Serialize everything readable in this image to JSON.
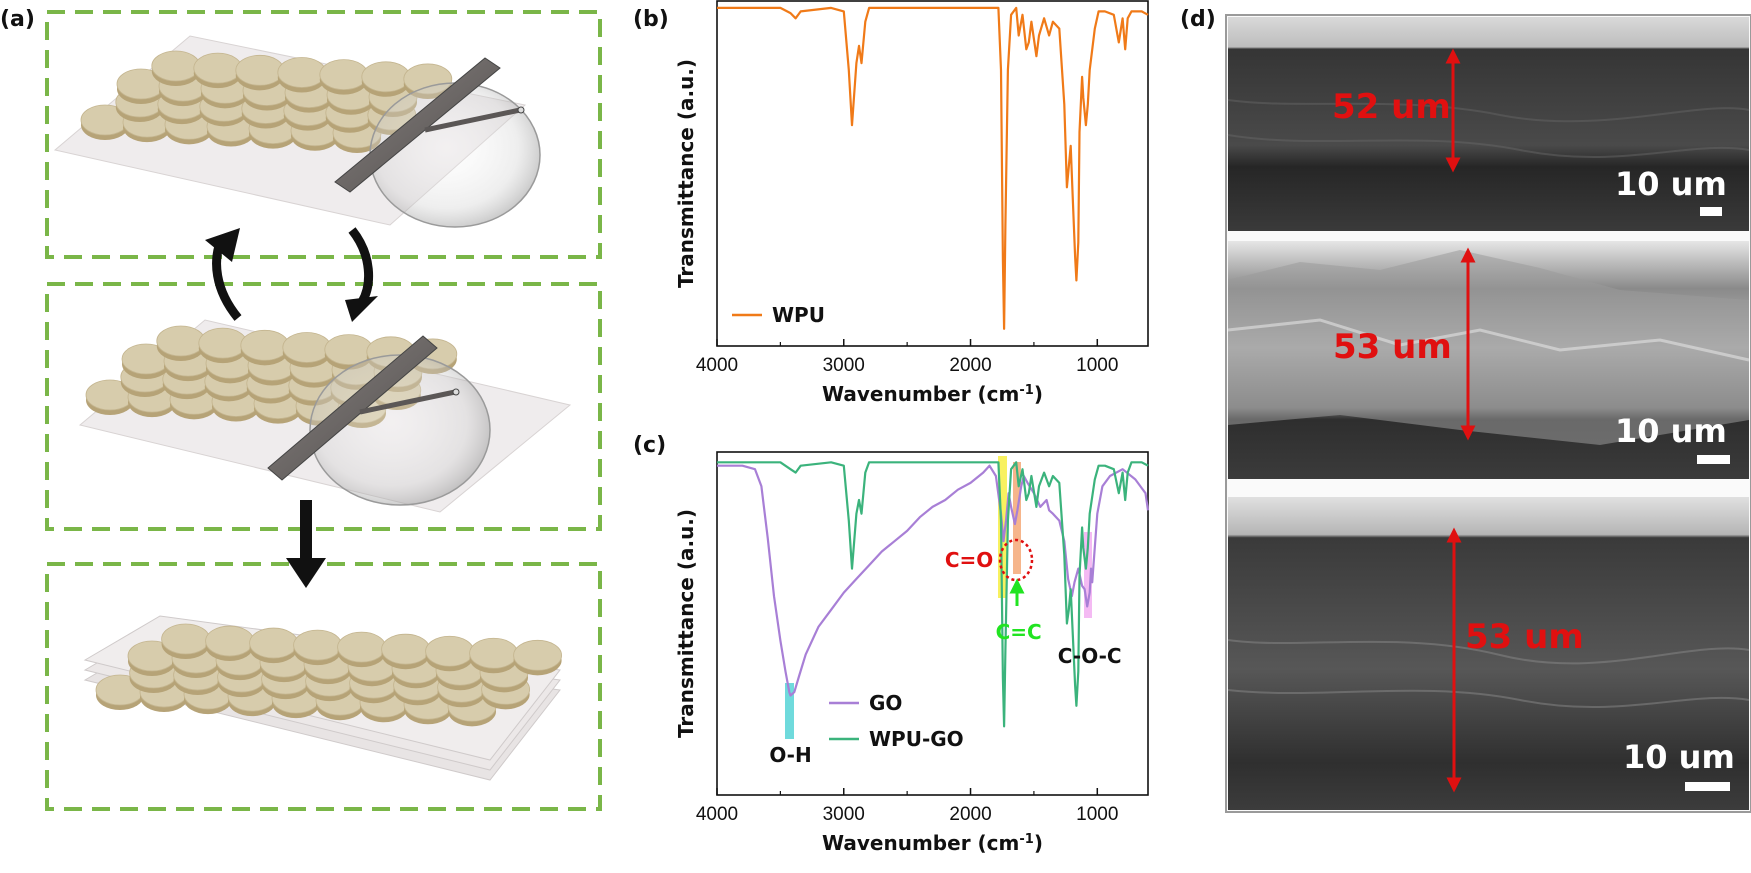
{
  "panels": {
    "a": {
      "label": "(a)"
    },
    "b": {
      "label": "(b)"
    },
    "c": {
      "label": "(c)"
    },
    "d": {
      "label": "(d)"
    }
  },
  "colors": {
    "dash_green": "#7ab648",
    "flake": "#d7ccac",
    "flake_edge": "#b6a377",
    "blade": "#6f6a68",
    "wpu_line": "#f07a18",
    "go_line": "#a87fd6",
    "wpugo_line": "#3bb37c",
    "red": "#e01010",
    "green_annot": "#21e421"
  },
  "sem": {
    "images": [
      {
        "thickness_label": "52 um",
        "scale_label": "10 um"
      },
      {
        "thickness_label": "53 um",
        "scale_label": "10 um"
      },
      {
        "thickness_label": "53 um",
        "scale_label": "10 um"
      }
    ]
  },
  "chart_data": [
    {
      "type": "line",
      "panel": "(b)",
      "title": "",
      "xlabel": "Wavenumber (cm⁻¹)",
      "xlabel_main": "Wavenumber (cm",
      "xlabel_sup": "-1",
      "xlabel_close": ")",
      "ylabel": "Transmittance (a.u.)",
      "xlim": [
        4000,
        600
      ],
      "ylim": [
        0,
        100
      ],
      "x_ticks": [
        4000,
        3000,
        2000,
        1000
      ],
      "x_tick_labels": [
        "4000",
        "3000",
        "2000",
        "1000"
      ],
      "legend_position": "bottom-left",
      "series": [
        {
          "name": "WPU",
          "color": "#f07a18",
          "points": [
            [
              4000,
              98
            ],
            [
              3700,
              98
            ],
            [
              3500,
              98
            ],
            [
              3420,
              96.5
            ],
            [
              3380,
              95
            ],
            [
              3340,
              97
            ],
            [
              3100,
              98
            ],
            [
              3000,
              97
            ],
            [
              2960,
              80
            ],
            [
              2935,
              64
            ],
            [
              2900,
              82
            ],
            [
              2880,
              87
            ],
            [
              2860,
              82
            ],
            [
              2830,
              94
            ],
            [
              2800,
              98
            ],
            [
              2000,
              98
            ],
            [
              1780,
              98
            ],
            [
              1760,
              80
            ],
            [
              1745,
              25
            ],
            [
              1735,
              5
            ],
            [
              1725,
              35
            ],
            [
              1705,
              80
            ],
            [
              1680,
              96
            ],
            [
              1640,
              98
            ],
            [
              1620,
              90
            ],
            [
              1590,
              96
            ],
            [
              1560,
              86
            ],
            [
              1540,
              88
            ],
            [
              1520,
              94
            ],
            [
              1480,
              84
            ],
            [
              1460,
              90
            ],
            [
              1420,
              95
            ],
            [
              1380,
              90
            ],
            [
              1350,
              94
            ],
            [
              1300,
              92
            ],
            [
              1260,
              70
            ],
            [
              1240,
              46
            ],
            [
              1225,
              52
            ],
            [
              1210,
              58
            ],
            [
              1195,
              44
            ],
            [
              1175,
              26
            ],
            [
              1165,
              19
            ],
            [
              1150,
              30
            ],
            [
              1140,
              62
            ],
            [
              1120,
              78
            ],
            [
              1110,
              72
            ],
            [
              1090,
              64
            ],
            [
              1075,
              70
            ],
            [
              1060,
              80
            ],
            [
              1020,
              92
            ],
            [
              990,
              97
            ],
            [
              940,
              97
            ],
            [
              870,
              96
            ],
            [
              830,
              88
            ],
            [
              800,
              95
            ],
            [
              780,
              86
            ],
            [
              760,
              95
            ],
            [
              730,
              97
            ],
            [
              650,
              97
            ],
            [
              600,
              96
            ]
          ]
        }
      ]
    },
    {
      "type": "line",
      "panel": "(c)",
      "title": "",
      "xlabel": "Wavenumber (cm⁻¹)",
      "xlabel_main": "Wavenumber (cm",
      "xlabel_sup": "-1",
      "xlabel_close": ")",
      "ylabel": "Transmittance (a.u.)",
      "xlim": [
        4000,
        600
      ],
      "ylim": [
        0,
        100
      ],
      "x_ticks": [
        4000,
        3000,
        2000,
        1000
      ],
      "x_tick_labels": [
        "4000",
        "3000",
        "2000",
        "1000"
      ],
      "legend_position": "bottom-center",
      "annotations": [
        {
          "text": "O-H",
          "x": 3420
        },
        {
          "text": "C=O",
          "x": 1710
        },
        {
          "text": "C=C",
          "x": 1620
        },
        {
          "text": "C-O-C",
          "x": 1060
        }
      ],
      "series": [
        {
          "name": "GO",
          "color": "#a87fd6",
          "points": [
            [
              4000,
              96
            ],
            [
              3800,
              96
            ],
            [
              3700,
              95
            ],
            [
              3650,
              90
            ],
            [
              3600,
              75
            ],
            [
              3550,
              58
            ],
            [
              3500,
              45
            ],
            [
              3460,
              36
            ],
            [
              3430,
              30
            ],
            [
              3420,
              29
            ],
            [
              3390,
              30
            ],
            [
              3350,
              35
            ],
            [
              3300,
              41
            ],
            [
              3200,
              49
            ],
            [
              3100,
              54
            ],
            [
              3000,
              59
            ],
            [
              2900,
              63
            ],
            [
              2800,
              67
            ],
            [
              2700,
              71
            ],
            [
              2600,
              74
            ],
            [
              2500,
              77
            ],
            [
              2400,
              81
            ],
            [
              2300,
              84
            ],
            [
              2200,
              86
            ],
            [
              2100,
              89
            ],
            [
              2000,
              91
            ],
            [
              1900,
              94
            ],
            [
              1850,
              96
            ],
            [
              1800,
              93
            ],
            [
              1760,
              82
            ],
            [
              1740,
              74
            ],
            [
              1720,
              80
            ],
            [
              1700,
              88
            ],
            [
              1680,
              84
            ],
            [
              1650,
              79
            ],
            [
              1630,
              83
            ],
            [
              1600,
              90
            ],
            [
              1580,
              93
            ],
            [
              1550,
              91
            ],
            [
              1500,
              88
            ],
            [
              1450,
              84
            ],
            [
              1400,
              86
            ],
            [
              1380,
              83
            ],
            [
              1350,
              82
            ],
            [
              1300,
              80
            ],
            [
              1260,
              74
            ],
            [
              1230,
              63
            ],
            [
              1200,
              58
            ],
            [
              1180,
              62
            ],
            [
              1150,
              66
            ],
            [
              1120,
              61
            ],
            [
              1100,
              60
            ],
            [
              1080,
              55
            ],
            [
              1060,
              59
            ],
            [
              1050,
              66
            ],
            [
              1040,
              62
            ],
            [
              1000,
              82
            ],
            [
              960,
              90
            ],
            [
              900,
              93
            ],
            [
              800,
              95
            ],
            [
              700,
              92
            ],
            [
              620,
              88
            ],
            [
              600,
              83
            ]
          ]
        },
        {
          "name": "WPU-GO",
          "color": "#3bb37c",
          "points": [
            [
              4000,
              97
            ],
            [
              3700,
              97
            ],
            [
              3500,
              97
            ],
            [
              3420,
              95
            ],
            [
              3380,
              94
            ],
            [
              3340,
              96
            ],
            [
              3100,
              97
            ],
            [
              3000,
              96
            ],
            [
              2960,
              80
            ],
            [
              2935,
              66
            ],
            [
              2900,
              82
            ],
            [
              2880,
              86
            ],
            [
              2860,
              82
            ],
            [
              2830,
              94
            ],
            [
              2800,
              97
            ],
            [
              2000,
              97
            ],
            [
              1780,
              97
            ],
            [
              1760,
              80
            ],
            [
              1745,
              34
            ],
            [
              1735,
              20
            ],
            [
              1725,
              42
            ],
            [
              1705,
              80
            ],
            [
              1680,
              95
            ],
            [
              1640,
              97
            ],
            [
              1620,
              90
            ],
            [
              1590,
              95
            ],
            [
              1560,
              86
            ],
            [
              1540,
              88
            ],
            [
              1520,
              93
            ],
            [
              1480,
              84
            ],
            [
              1460,
              90
            ],
            [
              1420,
              94
            ],
            [
              1380,
              90
            ],
            [
              1350,
              93
            ],
            [
              1300,
              91
            ],
            [
              1260,
              70
            ],
            [
              1240,
              50
            ],
            [
              1225,
              54
            ],
            [
              1210,
              60
            ],
            [
              1195,
              48
            ],
            [
              1175,
              32
            ],
            [
              1165,
              26
            ],
            [
              1150,
              36
            ],
            [
              1140,
              64
            ],
            [
              1120,
              78
            ],
            [
              1110,
              72
            ],
            [
              1090,
              66
            ],
            [
              1075,
              72
            ],
            [
              1060,
              82
            ],
            [
              1020,
              92
            ],
            [
              990,
              96
            ],
            [
              940,
              96
            ],
            [
              870,
              95
            ],
            [
              830,
              88
            ],
            [
              800,
              94
            ],
            [
              780,
              86
            ],
            [
              760,
              94
            ],
            [
              730,
              97
            ],
            [
              650,
              97
            ],
            [
              600,
              96
            ]
          ]
        }
      ]
    }
  ]
}
